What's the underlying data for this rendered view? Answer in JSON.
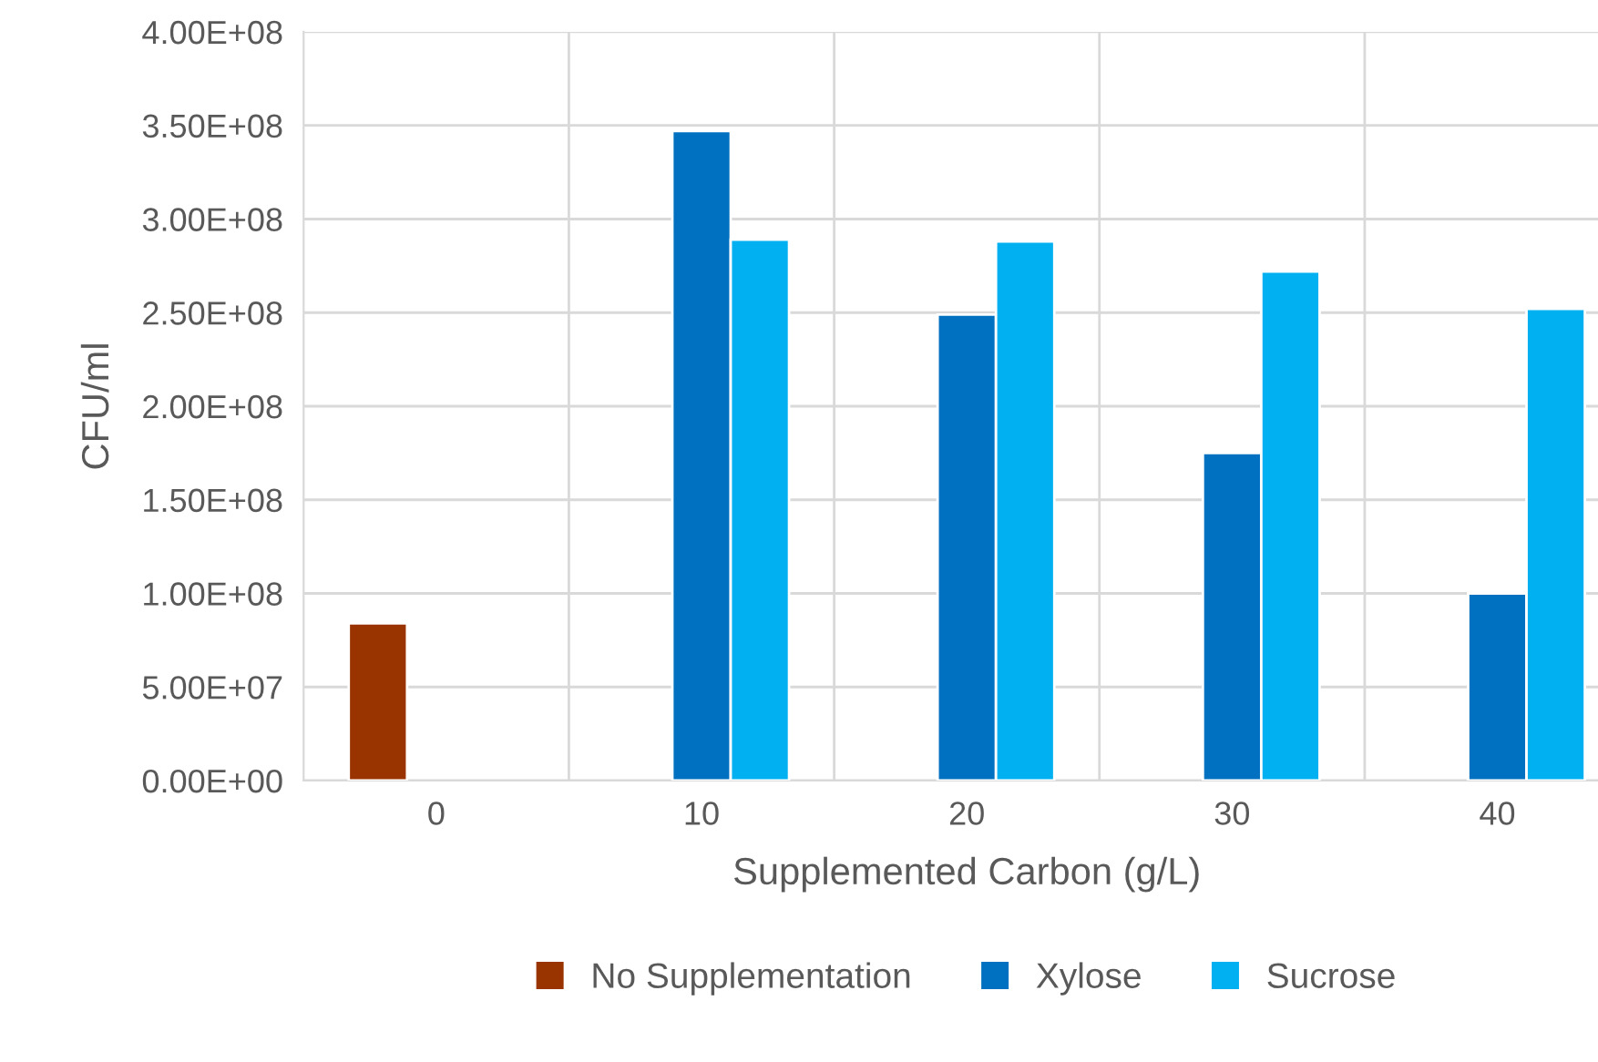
{
  "chart_data": {
    "type": "bar",
    "xlabel": "Supplemented Carbon (g/L)",
    "ylabel": "CFU/ml",
    "categories": [
      "0",
      "10",
      "20",
      "30",
      "40"
    ],
    "series": [
      {
        "name": "No Supplementation",
        "color": "#993300",
        "values": [
          84000000.0,
          null,
          null,
          null,
          null
        ]
      },
      {
        "name": "Xylose",
        "color": "#0070c0",
        "values": [
          null,
          347000000.0,
          249000000.0,
          175000000.0,
          100000000.0
        ]
      },
      {
        "name": "Sucrose",
        "color": "#00b0f0",
        "values": [
          null,
          289000000.0,
          288000000.0,
          272000000.0,
          252000000.0
        ]
      }
    ],
    "ylim": [
      0,
      400000000.0
    ],
    "yticks": [
      {
        "value": 0,
        "label": "0.00E+00"
      },
      {
        "value": 50000000.0,
        "label": "5.00E+07"
      },
      {
        "value": 100000000.0,
        "label": "1.00E+08"
      },
      {
        "value": 150000000.0,
        "label": "1.50E+08"
      },
      {
        "value": 200000000.0,
        "label": "2.00E+08"
      },
      {
        "value": 250000000.0,
        "label": "2.50E+08"
      },
      {
        "value": 300000000.0,
        "label": "3.00E+08"
      },
      {
        "value": 350000000.0,
        "label": "3.50E+08"
      },
      {
        "value": 400000000.0,
        "label": "4.00E+08"
      }
    ],
    "grid": true,
    "legend": "bottom"
  }
}
